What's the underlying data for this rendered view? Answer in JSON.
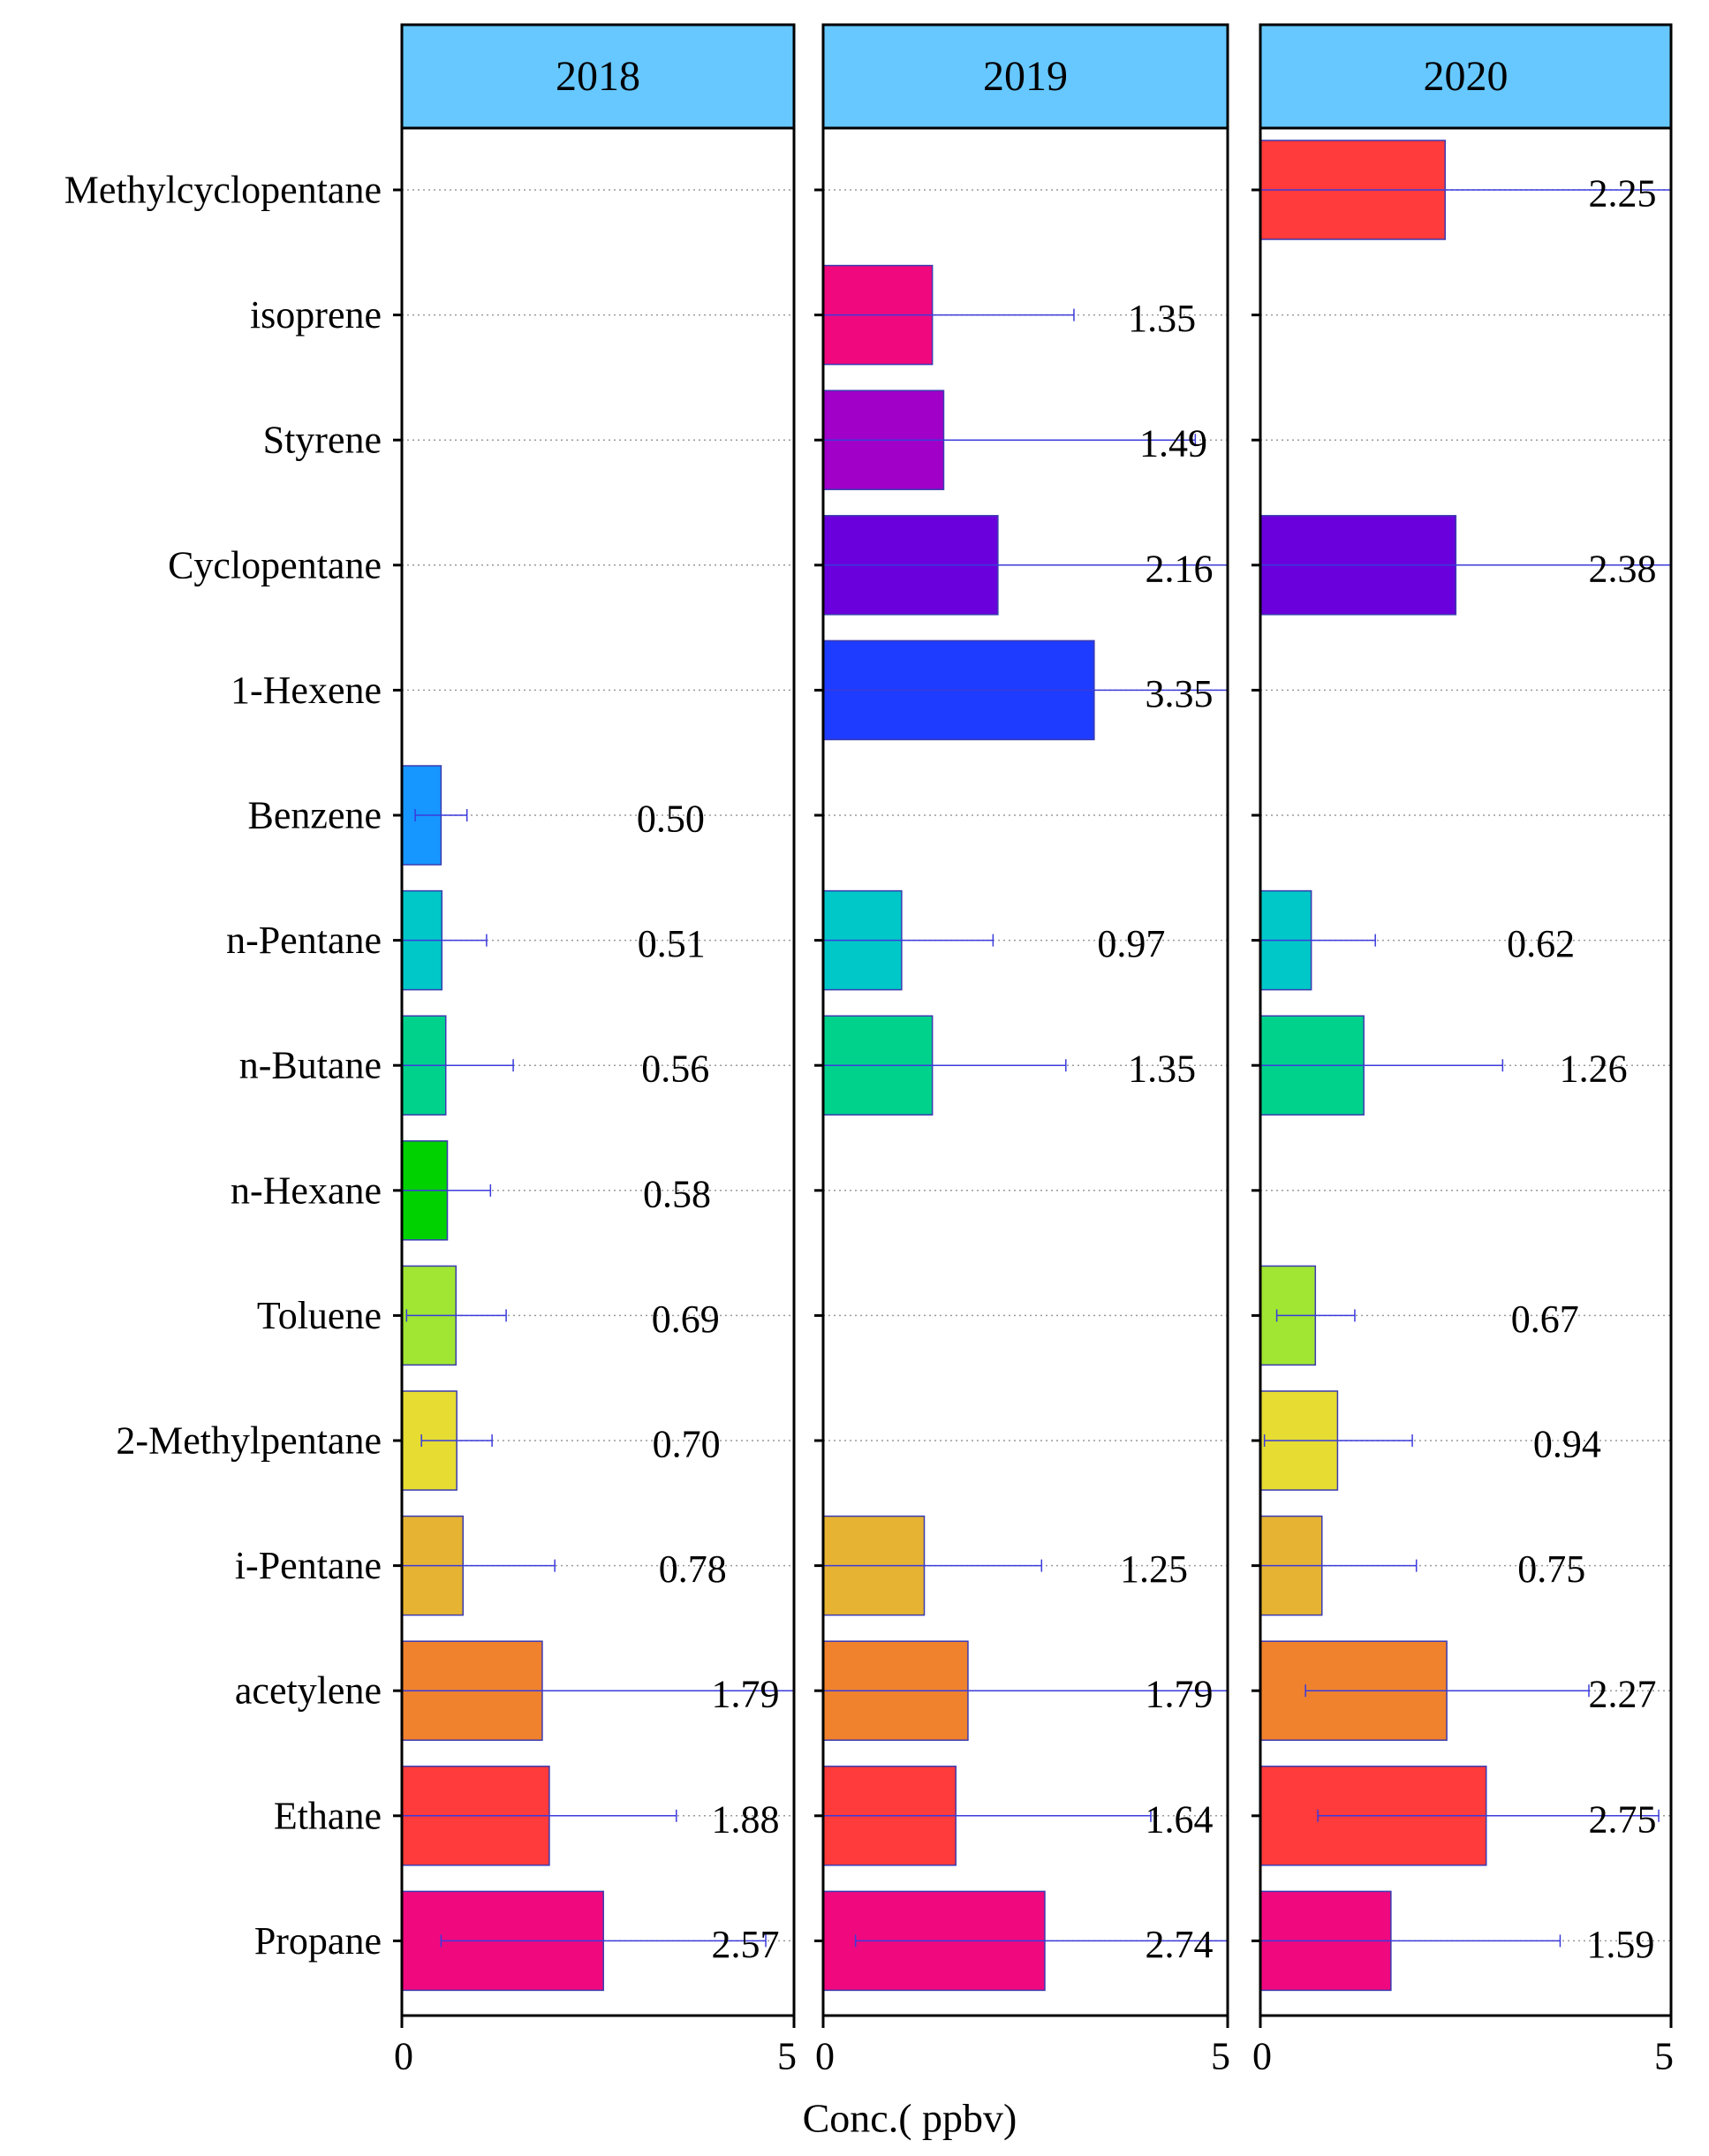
{
  "chart_data": {
    "type": "bar",
    "orientation": "horizontal",
    "xlabel": "Conc.( ppbv)",
    "xlim": [
      0,
      5
    ],
    "xticks": [
      "0",
      "5"
    ],
    "grid": "dotted horizontal",
    "categories": [
      "Methylcyclopentane",
      "isoprene",
      "Styrene",
      "Cyclopentane",
      "1-Hexene",
      "Benzene",
      "n-Pentane",
      "n-Butane",
      "n-Hexane",
      "Toluene",
      "2-Methylpentane",
      "i-Pentane",
      "acetylene",
      "Ethane",
      "Propane"
    ],
    "category_colors": [
      "#ff3b3b",
      "#f0087f",
      "#a000c8",
      "#6a00dc",
      "#1e3cff",
      "#1696ff",
      "#00c8c8",
      "#00d28c",
      "#00d200",
      "#a0e632",
      "#e6dc32",
      "#e6b432",
      "#f0822d",
      "#ff3b3b",
      "#f0087f"
    ],
    "panels": [
      {
        "title": "2018",
        "values": [
          null,
          null,
          null,
          null,
          null,
          0.5,
          0.51,
          0.56,
          0.58,
          0.69,
          0.7,
          0.78,
          1.79,
          1.88,
          2.57
        ],
        "labels": [
          "",
          "",
          "",
          "",
          "",
          "0.50",
          "0.51",
          "0.56",
          "0.58",
          "0.69",
          "0.70",
          "0.78",
          "1.79",
          "1.88",
          "2.57"
        ],
        "err_low": [
          null,
          null,
          null,
          null,
          null,
          0.17,
          0.0,
          0.0,
          0.0,
          0.06,
          0.25,
          0.0,
          0.0,
          0.0,
          0.5
        ],
        "err_high": [
          null,
          null,
          null,
          null,
          null,
          0.83,
          1.08,
          1.42,
          1.13,
          1.33,
          1.15,
          1.95,
          5.0,
          3.5,
          4.64
        ]
      },
      {
        "title": "2019",
        "values": [
          null,
          1.35,
          1.49,
          2.16,
          3.35,
          null,
          0.97,
          1.35,
          null,
          null,
          null,
          1.25,
          1.79,
          1.64,
          2.74
        ],
        "labels": [
          "",
          "1.35",
          "1.49",
          "2.16",
          "3.35",
          "",
          "0.97",
          "1.35",
          "",
          "",
          "",
          "1.25",
          "1.79",
          "1.64",
          "2.74"
        ],
        "err_low": [
          null,
          0.0,
          0.0,
          0.0,
          0.0,
          null,
          0.0,
          0.0,
          null,
          null,
          null,
          0.0,
          0.0,
          0.0,
          0.4
        ],
        "err_high": [
          null,
          3.1,
          4.6,
          5.0,
          5.0,
          null,
          2.1,
          3.0,
          null,
          null,
          null,
          2.7,
          5.0,
          4.05,
          5.0
        ]
      },
      {
        "title": "2020",
        "values": [
          2.25,
          null,
          null,
          2.38,
          null,
          null,
          0.62,
          1.26,
          null,
          0.67,
          0.94,
          0.75,
          2.27,
          2.75,
          1.59
        ],
        "labels": [
          "2.25",
          "",
          "",
          "2.38",
          "",
          "",
          "0.62",
          "1.26",
          "",
          "0.67",
          "0.94",
          "0.75",
          "2.27",
          "2.75",
          "1.59"
        ],
        "err_low": [
          0.0,
          null,
          null,
          0.0,
          null,
          null,
          0.0,
          0.0,
          null,
          0.2,
          0.05,
          0.0,
          0.55,
          0.7,
          0.0
        ],
        "err_high": [
          5.0,
          null,
          null,
          5.0,
          null,
          null,
          1.4,
          2.95,
          null,
          1.15,
          1.85,
          1.9,
          4.0,
          4.85,
          3.65
        ]
      }
    ]
  }
}
